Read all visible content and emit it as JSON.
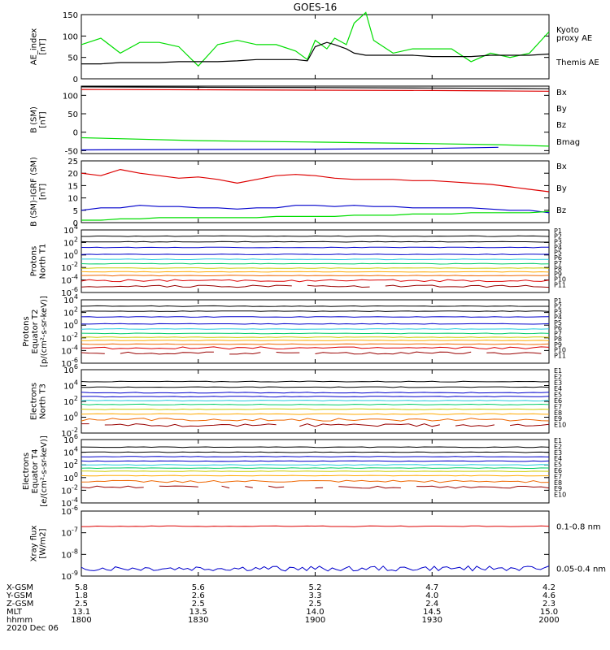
{
  "chart_data": {
    "title": "GOES-16",
    "x_ticks": [
      1800,
      1830,
      1900,
      1930,
      2000
    ],
    "panels": [
      {
        "id": "ae",
        "type": "line",
        "scale": "linear",
        "ylim": [
          0,
          150
        ],
        "yticks": [
          0,
          50,
          100,
          150
        ],
        "ylabel": [
          "AE_index",
          "[nT]"
        ],
        "x": [
          1800,
          1805,
          1810,
          1815,
          1820,
          1825,
          1830,
          1835,
          1840,
          1845,
          1850,
          1855,
          1858,
          1900,
          1903,
          1905,
          1908,
          1910,
          1913,
          1915,
          1920,
          1925,
          1930,
          1935,
          1940,
          1945,
          1950,
          1955,
          2000
        ],
        "series": [
          {
            "name": "Kyoto proxy AE",
            "color": "#00dd00",
            "values": [
              80,
              95,
              60,
              85,
              85,
              75,
              30,
              80,
              90,
              80,
              80,
              65,
              45,
              90,
              70,
              95,
              80,
              130,
              155,
              90,
              60,
              70,
              70,
              70,
              40,
              60,
              50,
              60,
              110
            ]
          },
          {
            "name": "Themis AE",
            "color": "#000000",
            "values": [
              35,
              35,
              38,
              38,
              38,
              40,
              40,
              40,
              42,
              45,
              45,
              45,
              42,
              75,
              85,
              80,
              70,
              60,
              55,
              55,
              55,
              55,
              52,
              52,
              52,
              55,
              55,
              55,
              58
            ]
          }
        ],
        "legend": [
          {
            "text": "Kyoto",
            "color": "#00dd00"
          },
          {
            "text": "proxy AE",
            "color": "#00dd00"
          },
          {
            "text": "Themis AE",
            "color": "#000000"
          }
        ]
      },
      {
        "id": "bsm",
        "type": "line",
        "scale": "linear",
        "ylim": [
          -58,
          125
        ],
        "yticks": [
          -50,
          0,
          50,
          100
        ],
        "ylabel": [
          "B (SM)",
          "[nT]"
        ],
        "x": [
          1800,
          1830,
          1900,
          1930,
          1947,
          2000
        ],
        "series": [
          {
            "name": "Bx",
            "color": "#0000cc",
            "values": [
              -48,
              -47,
              -46,
              -44,
              -41,
              null
            ]
          },
          {
            "name": "By",
            "color": "#00dd00",
            "values": [
              -15,
              -23,
              -27,
              -31,
              -34,
              -38
            ]
          },
          {
            "name": "Bz",
            "color": "#dd0000",
            "values": [
              116,
              115,
              114,
              113,
              112,
              111
            ]
          },
          {
            "name": "Bmag",
            "color": "#000000",
            "values": [
              123,
              122,
              121,
              120,
              119,
              118
            ]
          }
        ],
        "legend": [
          {
            "text": "Bx",
            "color": "#0000cc"
          },
          {
            "text": "By",
            "color": "#00dd00"
          },
          {
            "text": "Bz",
            "color": "#dd0000"
          },
          {
            "text": "Bmag",
            "color": "#000000"
          }
        ]
      },
      {
        "id": "bigrf",
        "type": "line",
        "scale": "linear",
        "ylim": [
          0,
          25
        ],
        "yticks": [
          0,
          5,
          10,
          15,
          20,
          25
        ],
        "ylabel": [
          "B (SM)-IGRF (SM)",
          "[nT]"
        ],
        "x": [
          1800,
          1805,
          1810,
          1815,
          1820,
          1825,
          1830,
          1835,
          1840,
          1845,
          1850,
          1855,
          1900,
          1905,
          1910,
          1915,
          1920,
          1925,
          1930,
          1935,
          1940,
          1945,
          1950,
          1955,
          2000
        ],
        "series": [
          {
            "name": "Bx",
            "color": "#0000cc",
            "values": [
              5,
              6,
              6,
              7,
              6.5,
              6.5,
              6,
              6,
              5.5,
              6,
              6,
              7,
              7,
              6.5,
              7,
              6.5,
              6.5,
              6,
              6,
              6,
              6,
              5.5,
              5,
              5,
              4
            ]
          },
          {
            "name": "By",
            "color": "#00dd00",
            "values": [
              1,
              1,
              1.5,
              1.5,
              2,
              2,
              2,
              2,
              2,
              2,
              2.5,
              2.5,
              2.5,
              2.5,
              3,
              3,
              3,
              3.5,
              3.5,
              3.5,
              4,
              4,
              4,
              4,
              4.5
            ]
          },
          {
            "name": "Bz",
            "color": "#dd0000",
            "values": [
              20,
              19,
              21.5,
              20,
              19,
              18,
              18.5,
              17.5,
              16,
              17.5,
              19,
              19.5,
              19,
              18,
              17.5,
              17.5,
              17.5,
              17,
              17,
              16.5,
              16,
              15.5,
              14.5,
              13.5,
              12.5
            ]
          }
        ],
        "legend": [
          {
            "text": "Bx",
            "color": "#0000cc"
          },
          {
            "text": "By",
            "color": "#00dd00"
          },
          {
            "text": "Bz",
            "color": "#dd0000"
          }
        ]
      },
      {
        "id": "pn",
        "type": "line",
        "scale": "log",
        "ylim": [
          -6,
          4
        ],
        "yticks": [
          -6,
          -4,
          -2,
          0,
          2,
          4
        ],
        "ylabel": [
          "Protons",
          "North T1"
        ],
        "channels": [
          {
            "name": "P1",
            "color": "#000000",
            "level": 3.0
          },
          {
            "name": "P2",
            "color": "#000000",
            "level": 2.1
          },
          {
            "name": "P3",
            "color": "#0000cc",
            "level": 1.2
          },
          {
            "name": "P4",
            "color": "#0000cc",
            "level": 0.1
          },
          {
            "name": "P5",
            "color": "#22ccdd",
            "level": -0.7
          },
          {
            "name": "P6",
            "color": "#00cc66",
            "level": -1.4
          },
          {
            "name": "P7",
            "color": "#cccc00",
            "level": -2.1
          },
          {
            "name": "P8",
            "color": "#ffaa00",
            "level": -2.7
          },
          {
            "name": "P9",
            "color": "#ee6600",
            "level": -3.3
          },
          {
            "name": "P10",
            "color": "#dd0000",
            "level": -4.1
          },
          {
            "name": "P11",
            "color": "#990000",
            "level": -5.0
          }
        ]
      },
      {
        "id": "pe",
        "type": "line",
        "scale": "log",
        "ylim": [
          -6,
          4
        ],
        "yticks": [
          -6,
          -4,
          -2,
          0,
          2,
          4
        ],
        "ylabel": [
          "Protons",
          "Equator T2",
          "[p/(cm²-s-sr-keV)]"
        ],
        "channels": [
          {
            "name": "P1",
            "color": "#000000",
            "level": 3.0
          },
          {
            "name": "P2",
            "color": "#000000",
            "level": 2.2
          },
          {
            "name": "P3",
            "color": "#0000cc",
            "level": 1.3
          },
          {
            "name": "P4",
            "color": "#0000cc",
            "level": 0.2
          },
          {
            "name": "P5",
            "color": "#22ccdd",
            "level": -0.6
          },
          {
            "name": "P6",
            "color": "#00cc66",
            "level": -1.3
          },
          {
            "name": "P7",
            "color": "#cccc00",
            "level": -1.9
          },
          {
            "name": "P8",
            "color": "#ffaa00",
            "level": -2.4
          },
          {
            "name": "P9",
            "color": "#ee6600",
            "level": -3.0
          },
          {
            "name": "P10",
            "color": "#dd0000",
            "level": -3.6
          },
          {
            "name": "P11",
            "color": "#990000",
            "level": -4.4
          }
        ]
      },
      {
        "id": "en",
        "type": "line",
        "scale": "log",
        "ylim": [
          -2,
          6
        ],
        "yticks": [
          -2,
          0,
          2,
          4,
          6
        ],
        "ylabel": [
          "Electrons",
          "North T3"
        ],
        "channels": [
          {
            "name": "E1",
            "color": "#000000",
            "level": 4.5
          },
          {
            "name": "E2",
            "color": "#000000",
            "level": 3.8
          },
          {
            "name": "E3",
            "color": "#0000cc",
            "level": 3.1
          },
          {
            "name": "E4",
            "color": "#0000cc",
            "level": 2.6
          },
          {
            "name": "E5",
            "color": "#22ccdd",
            "level": 2.1
          },
          {
            "name": "E6",
            "color": "#00cc66",
            "level": 1.6
          },
          {
            "name": "E7",
            "color": "#cccc00",
            "level": 1.0
          },
          {
            "name": "E8",
            "color": "#ffaa00",
            "level": 0.4
          },
          {
            "name": "E9",
            "color": "#ee6600",
            "level": -0.3
          },
          {
            "name": "E10",
            "color": "#990000",
            "level": -1.0
          }
        ]
      },
      {
        "id": "ee",
        "type": "line",
        "scale": "log",
        "ylim": [
          -4,
          6
        ],
        "yticks": [
          -4,
          -2,
          0,
          2,
          4,
          6
        ],
        "ylabel": [
          "Electrons",
          "Equator T4",
          "[e/(cm²-s-sr-keV)]"
        ],
        "channels": [
          {
            "name": "E1",
            "color": "#000000",
            "level": 4.8
          },
          {
            "name": "E2",
            "color": "#000000",
            "level": 4.0
          },
          {
            "name": "E3",
            "color": "#0000cc",
            "level": 3.3
          },
          {
            "name": "E4",
            "color": "#0000cc",
            "level": 2.6
          },
          {
            "name": "E5",
            "color": "#22ccdd",
            "level": 2.0
          },
          {
            "name": "E6",
            "color": "#00cc66",
            "level": 1.5
          },
          {
            "name": "E7",
            "color": "#cccc00",
            "level": 1.0
          },
          {
            "name": "E8",
            "color": "#ffaa00",
            "level": 0.3
          },
          {
            "name": "E9",
            "color": "#ee6600",
            "level": -0.6
          },
          {
            "name": "E10",
            "color": "#990000",
            "level": -1.5
          }
        ]
      },
      {
        "id": "xray",
        "type": "line",
        "scale": "log",
        "ylim": [
          -9,
          -6
        ],
        "yticks": [
          -9,
          -8,
          -7,
          -6
        ],
        "ylabel": [
          "Xray flux",
          "[W/m2]"
        ],
        "channels": [
          {
            "name": "0.1-0.8 nm",
            "color": "#dd0000",
            "level": -6.7
          },
          {
            "name": "0.05-0.4 nm",
            "color": "#0000cc",
            "level": -8.65
          }
        ]
      }
    ],
    "ephemeris": {
      "rows": [
        {
          "label": "X-GSM",
          "values": [
            "5.8",
            "5.6",
            "5.2",
            "4.7",
            "4.2"
          ]
        },
        {
          "label": "Y-GSM",
          "values": [
            "1.8",
            "2.6",
            "3.3",
            "4.0",
            "4.6"
          ]
        },
        {
          "label": "Z-GSM",
          "values": [
            "2.5",
            "2.5",
            "2.5",
            "2.4",
            "2.3"
          ]
        },
        {
          "label": "MLT",
          "values": [
            "13.1",
            "13.5",
            "14.0",
            "14.5",
            "15.0"
          ]
        },
        {
          "label": "hhmm",
          "values": [
            "1800",
            "1830",
            "1900",
            "1930",
            "2000"
          ]
        }
      ],
      "date": "2020 Dec 06"
    }
  }
}
